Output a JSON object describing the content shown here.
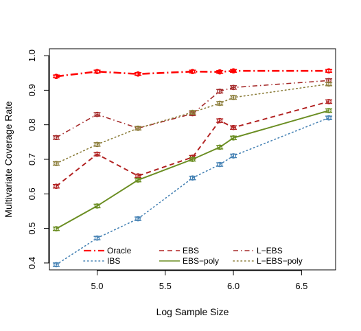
{
  "chart_data": {
    "type": "line",
    "title": "",
    "xlabel": "Log Sample Size",
    "ylabel": "Multivariate Coverage Rate",
    "xlim": [
      4.65,
      6.75
    ],
    "ylim": [
      0.38,
      1.02
    ],
    "xticks": [
      5.0,
      5.5,
      6.0,
      6.5
    ],
    "xtick_labels": [
      "5.0",
      "5.5",
      "6.0",
      "6.5"
    ],
    "yticks": [
      0.4,
      0.5,
      0.6,
      0.7,
      0.8,
      0.9,
      1.0
    ],
    "ytick_labels": [
      "0.4",
      "0.5",
      "0.6",
      "0.7",
      "0.8",
      "0.9",
      "1.0"
    ],
    "grid": false,
    "legend_position": "bottom-inside",
    "x": [
      4.7,
      5.0,
      5.3,
      5.7,
      5.9,
      6.0,
      6.7
    ],
    "series": [
      {
        "name": "Oracle",
        "values": [
          0.94,
          0.954,
          0.947,
          0.954,
          0.953,
          0.956,
          0.956
        ],
        "error": 0.004,
        "color": "#ff0000",
        "dash": "longdash-dot",
        "width": 2.6
      },
      {
        "name": "IBS",
        "values": [
          0.395,
          0.472,
          0.528,
          0.646,
          0.685,
          0.71,
          0.82
        ],
        "error": 0.005,
        "color": "#4682b4",
        "dash": "dotted",
        "width": 1.6
      },
      {
        "name": "EBS",
        "values": [
          0.622,
          0.715,
          0.652,
          0.706,
          0.812,
          0.792,
          0.867
        ],
        "error": 0.005,
        "color": "#b22222",
        "dash": "dashed",
        "width": 2.0
      },
      {
        "name": "EBS−poly",
        "values": [
          0.499,
          0.565,
          0.64,
          0.7,
          0.735,
          0.762,
          0.841
        ],
        "error": 0.005,
        "color": "#6b8e23",
        "dash": "solid",
        "width": 2.0
      },
      {
        "name": "L−EBS",
        "values": [
          0.763,
          0.83,
          0.79,
          0.832,
          0.897,
          0.908,
          0.928
        ],
        "error": 0.005,
        "color": "#a52a2a",
        "dash": "dash-dot",
        "width": 1.6
      },
      {
        "name": "L−EBS−poly",
        "values": [
          0.688,
          0.743,
          0.79,
          0.836,
          0.862,
          0.879,
          0.918
        ],
        "error": 0.005,
        "color": "#8b7d3a",
        "dash": "dotted",
        "width": 1.6
      }
    ]
  }
}
